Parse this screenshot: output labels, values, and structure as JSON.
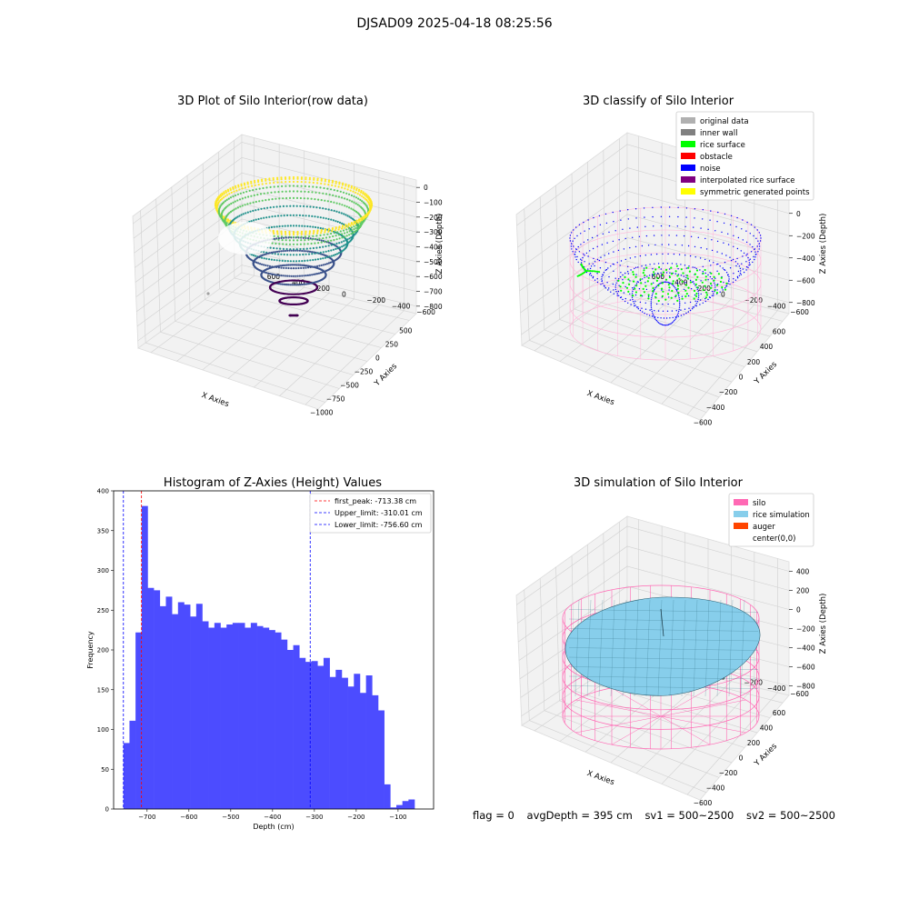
{
  "figure": {
    "suptitle": "DJSAD09 2025-04-18 08:25:56",
    "footer": {
      "flag": "flag = 0",
      "avg_depth": "avgDepth = 395 cm",
      "sv1": "sv1 = 500~2500",
      "sv2": "sv2 = 500~2500"
    }
  },
  "chart_data": [
    {
      "type": "scatter",
      "title": "3D Plot of Silo Interior(row data)",
      "xlabel": "X Axies",
      "ylabel": "Y Axies",
      "zlabel": "Z Axies (Depth)",
      "x_ticks": [
        -1000,
        -750,
        -500,
        -250,
        0,
        250,
        500
      ],
      "y_ticks": [
        -600,
        -400,
        -200,
        0,
        200,
        400,
        600
      ],
      "z_ticks": [
        0,
        -100,
        -200,
        -300,
        -400,
        -500,
        -600,
        -700,
        -800
      ],
      "colormap": "viridis"
    },
    {
      "type": "scatter",
      "title": "3D classify of Silo Interior",
      "xlabel": "X Axies",
      "ylabel": "Y Axies",
      "zlabel": "Z Axies (Depth)",
      "x_ticks": [
        -600,
        -400,
        -200,
        0,
        200,
        400,
        600
      ],
      "y_ticks": [
        -600,
        -400,
        -200,
        0,
        200,
        400,
        600
      ],
      "z_ticks": [
        200,
        0,
        -200,
        -400,
        -600,
        -800
      ],
      "legend": [
        {
          "label": "original data",
          "color": "#b0b0b0"
        },
        {
          "label": "inner wall",
          "color": "#808080"
        },
        {
          "label": "rice surface",
          "color": "#00ff00"
        },
        {
          "label": "obstacle",
          "color": "#ff0000"
        },
        {
          "label": "noise",
          "color": "#0000ff"
        },
        {
          "label": "interpolated rice surface",
          "color": "#800080"
        },
        {
          "label": "symmetric generated points",
          "color": "#ffff00"
        }
      ]
    },
    {
      "type": "bar",
      "title": "Histogram of Z-Axies (Height) Values",
      "xlabel": "Depth (cm)",
      "ylabel": "Frequency",
      "xlim": [
        -780,
        -15
      ],
      "ylim": [
        0,
        400
      ],
      "x_ticks": [
        -700,
        -600,
        -500,
        -400,
        -300,
        -200,
        -100
      ],
      "y_ticks": [
        0,
        50,
        100,
        150,
        200,
        250,
        300,
        350,
        400
      ],
      "bar_color": "#4c4cff",
      "bin_start": -756.6,
      "bin_width": 14.5,
      "values": [
        83,
        111,
        222,
        381,
        278,
        275,
        255,
        267,
        245,
        260,
        257,
        242,
        258,
        236,
        228,
        234,
        228,
        232,
        234,
        234,
        228,
        234,
        230,
        228,
        225,
        222,
        213,
        200,
        206,
        190,
        185,
        186,
        180,
        190,
        166,
        175,
        165,
        154,
        170,
        146,
        168,
        143,
        124,
        31,
        2,
        5,
        10,
        12
      ],
      "vlines": [
        {
          "label": "first_peak: -713.38 cm",
          "x": -713.38,
          "color": "#ff0000"
        },
        {
          "label": "Upper_limit: -310.01 cm",
          "x": -310.01,
          "color": "#0000ff"
        },
        {
          "label": "Lower_limit: -756.60 cm",
          "x": -756.6,
          "color": "#0000ff"
        }
      ]
    },
    {
      "type": "surface",
      "title": "3D simulation of Silo Interior",
      "xlabel": "X Axies",
      "ylabel": "Y Axies",
      "zlabel": "Z Axies (Depth)",
      "x_ticks": [
        -600,
        -400,
        -200,
        0,
        200,
        400,
        600
      ],
      "y_ticks": [
        -600,
        -400,
        -200,
        0,
        200,
        400,
        600
      ],
      "z_ticks": [
        400,
        200,
        0,
        -200,
        -400,
        -600,
        -800
      ],
      "legend": [
        {
          "label": "silo",
          "color": "#ff69b4"
        },
        {
          "label": "rice simulation",
          "color": "#87ceeb"
        },
        {
          "label": "auger",
          "color": "#ff4500"
        },
        {
          "label": "center(0,0)",
          "color": "#ffffff"
        }
      ]
    }
  ]
}
